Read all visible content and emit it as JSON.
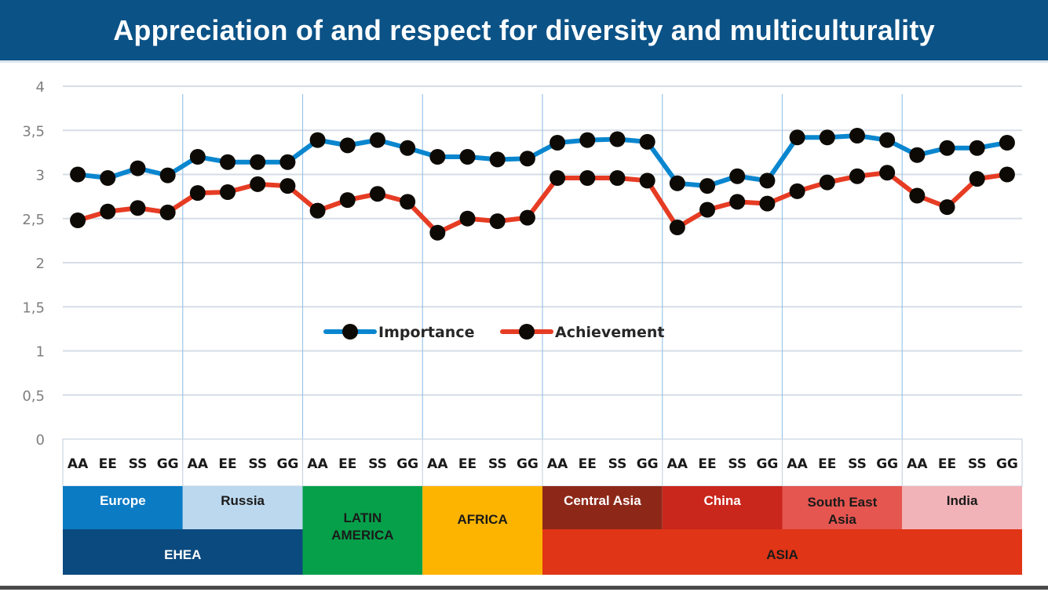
{
  "title": "Appreciation of and respect for diversity and multiculturality",
  "chart_data": {
    "type": "line",
    "title": "Appreciation of and respect for diversity and multiculturality",
    "xlabel": "",
    "ylabel": "",
    "ylim": [
      0,
      4
    ],
    "yticks": [
      0,
      0.5,
      1,
      1.5,
      2,
      2.5,
      3,
      3.5,
      4
    ],
    "ytick_labels": [
      "0",
      "0,5",
      "1",
      "1,5",
      "2",
      "2,5",
      "3",
      "3,5",
      "4"
    ],
    "grid": true,
    "legend_position": "center",
    "subcategories": [
      "AA",
      "EE",
      "SS",
      "GG"
    ],
    "regions": [
      {
        "name": "Europe",
        "color": "#0b7bc4",
        "text_color": "#ffffff"
      },
      {
        "name": "Russia",
        "color": "#bcd8ee",
        "text_color": "#1a1a1a"
      },
      {
        "name": "LATIN AMERICA",
        "color": "#07a04a",
        "text_color": "#1a1a1a"
      },
      {
        "name": "AFRICA",
        "color": "#fdb400",
        "text_color": "#1a1a1a"
      },
      {
        "name": "Central Asia",
        "color": "#8d2819",
        "text_color": "#ffffff"
      },
      {
        "name": "China",
        "color": "#c9261c",
        "text_color": "#ffffff"
      },
      {
        "name": "South East Asia",
        "color": "#e55650",
        "text_color": "#1a1a1a"
      },
      {
        "name": "India",
        "color": "#f2b3b8",
        "text_color": "#1a1a1a"
      }
    ],
    "groups": [
      {
        "name": "EHEA",
        "regions": [
          "Europe",
          "Russia"
        ],
        "color": "#0b4a7e",
        "text_color": "#ffffff"
      },
      {
        "name": "ASIA",
        "regions": [
          "Central Asia",
          "China",
          "South East Asia",
          "India"
        ],
        "color": "#e03516",
        "text_color": "#1a1a1a"
      }
    ],
    "categories": [
      "Europe AA",
      "Europe EE",
      "Europe SS",
      "Europe GG",
      "Russia AA",
      "Russia EE",
      "Russia SS",
      "Russia GG",
      "Latin America AA",
      "Latin America EE",
      "Latin America SS",
      "Latin America GG",
      "Africa AA",
      "Africa EE",
      "Africa SS",
      "Africa GG",
      "Central Asia AA",
      "Central Asia EE",
      "Central Asia SS",
      "Central Asia GG",
      "China AA",
      "China EE",
      "China SS",
      "China GG",
      "South East Asia AA",
      "South East Asia EE",
      "South East Asia SS",
      "South East Asia GG",
      "India AA",
      "India EE",
      "India SS",
      "India GG"
    ],
    "series": [
      {
        "name": "Importance",
        "color": "#0a86cf",
        "marker_color": "#0d0a05",
        "values": [
          3.0,
          2.96,
          3.07,
          2.99,
          3.2,
          3.14,
          3.14,
          3.14,
          3.39,
          3.33,
          3.39,
          3.3,
          3.2,
          3.2,
          3.17,
          3.18,
          3.36,
          3.39,
          3.4,
          3.37,
          2.9,
          2.87,
          2.98,
          2.93,
          3.42,
          3.42,
          3.44,
          3.39,
          3.22,
          3.3,
          3.3,
          3.36
        ]
      },
      {
        "name": "Achievement",
        "color": "#e63c24",
        "marker_color": "#0d0a05",
        "values": [
          2.48,
          2.58,
          2.62,
          2.57,
          2.79,
          2.8,
          2.89,
          2.87,
          2.59,
          2.71,
          2.78,
          2.69,
          2.34,
          2.5,
          2.47,
          2.51,
          2.96,
          2.96,
          2.96,
          2.93,
          2.4,
          2.6,
          2.69,
          2.67,
          2.81,
          2.91,
          2.98,
          3.02,
          2.76,
          2.63,
          2.95,
          3.0
        ]
      }
    ]
  },
  "colors": {
    "title_bar": "#0b5286",
    "gridline": "#d6dde6",
    "divider": "#9ec5e8"
  }
}
